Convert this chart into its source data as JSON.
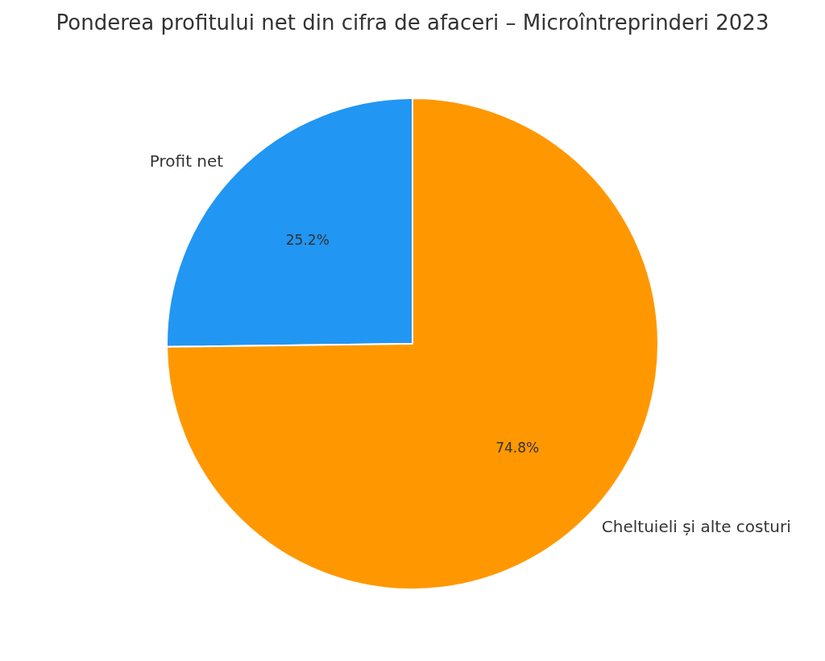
{
  "chart_data": {
    "type": "pie",
    "title": "Ponderea profitului net din cifra de afaceri – Microîntreprinderi 2023",
    "categories": [
      "Profit net",
      "Cheltuieli și alte costuri"
    ],
    "values": [
      25.2,
      74.8
    ],
    "colors": [
      "#2196f3",
      "#ff9800"
    ],
    "value_labels": [
      "25.2%",
      "74.8%"
    ],
    "legend": false
  }
}
